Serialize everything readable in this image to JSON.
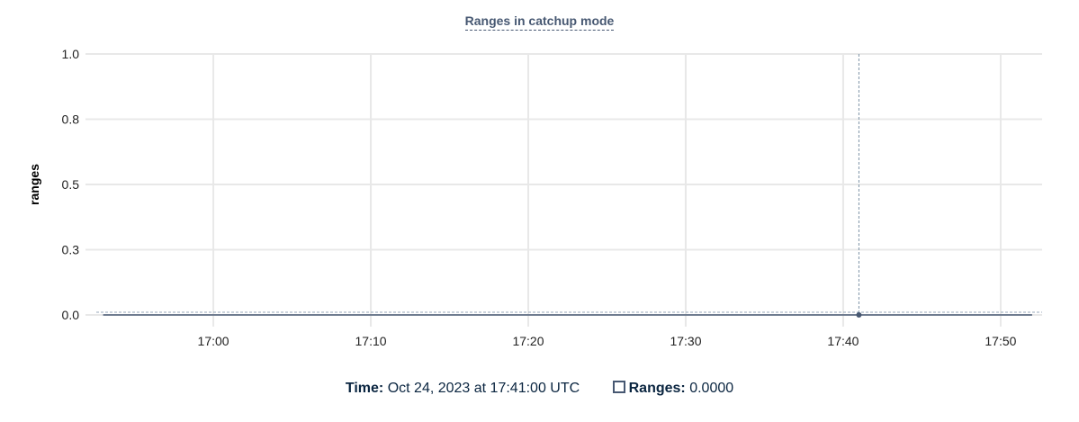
{
  "chart_data": {
    "type": "line",
    "title": "Ranges in catchup mode",
    "xlabel": "",
    "ylabel": "ranges",
    "ylim": [
      0,
      1
    ],
    "y_ticks": [
      0,
      0.25,
      0.5,
      0.75,
      1.0
    ],
    "y_tick_labels": [
      "0.0",
      "0.3",
      "0.5",
      "0.8",
      "1.0"
    ],
    "x_range": [
      "16:52:34",
      "17:52:38"
    ],
    "x_ticks": [
      "17:00",
      "17:10",
      "17:20",
      "17:30",
      "17:40",
      "17:50"
    ],
    "grid": true,
    "series": [
      {
        "name": "Ranges",
        "color": "#475872",
        "x": [
          "16:53",
          "16:54",
          "16:55",
          "16:56",
          "16:57",
          "16:58",
          "16:59",
          "17:00",
          "17:01",
          "17:02",
          "17:03",
          "17:04",
          "17:05",
          "17:06",
          "17:07",
          "17:08",
          "17:09",
          "17:10",
          "17:11",
          "17:12",
          "17:13",
          "17:14",
          "17:15",
          "17:16",
          "17:17",
          "17:18",
          "17:19",
          "17:20",
          "17:21",
          "17:22",
          "17:23",
          "17:24",
          "17:25",
          "17:26",
          "17:27",
          "17:28",
          "17:29",
          "17:30",
          "17:31",
          "17:32",
          "17:33",
          "17:34",
          "17:35",
          "17:36",
          "17:37",
          "17:38",
          "17:39",
          "17:40",
          "17:41",
          "17:42",
          "17:43",
          "17:44",
          "17:45",
          "17:46",
          "17:47",
          "17:48",
          "17:49",
          "17:50",
          "17:51",
          "17:52"
        ],
        "values": [
          0,
          0,
          0,
          0,
          0,
          0,
          0,
          0,
          0,
          0,
          0,
          0,
          0,
          0,
          0,
          0,
          0,
          0,
          0,
          0,
          0,
          0,
          0,
          0,
          0,
          0,
          0,
          0,
          0,
          0,
          0,
          0,
          0,
          0,
          0,
          0,
          0,
          0,
          0,
          0,
          0,
          0,
          0,
          0,
          0,
          0,
          0,
          0,
          0,
          0,
          0,
          0,
          0,
          0,
          0,
          0,
          0,
          0,
          0,
          0
        ]
      }
    ],
    "hover": {
      "x": "17:41",
      "value": 0
    }
  },
  "legend": {
    "time_label": "Time:",
    "time_value": "Oct 24, 2023 at 17:41:00 UTC",
    "series_label": "Ranges:",
    "series_value": "0.0000"
  }
}
